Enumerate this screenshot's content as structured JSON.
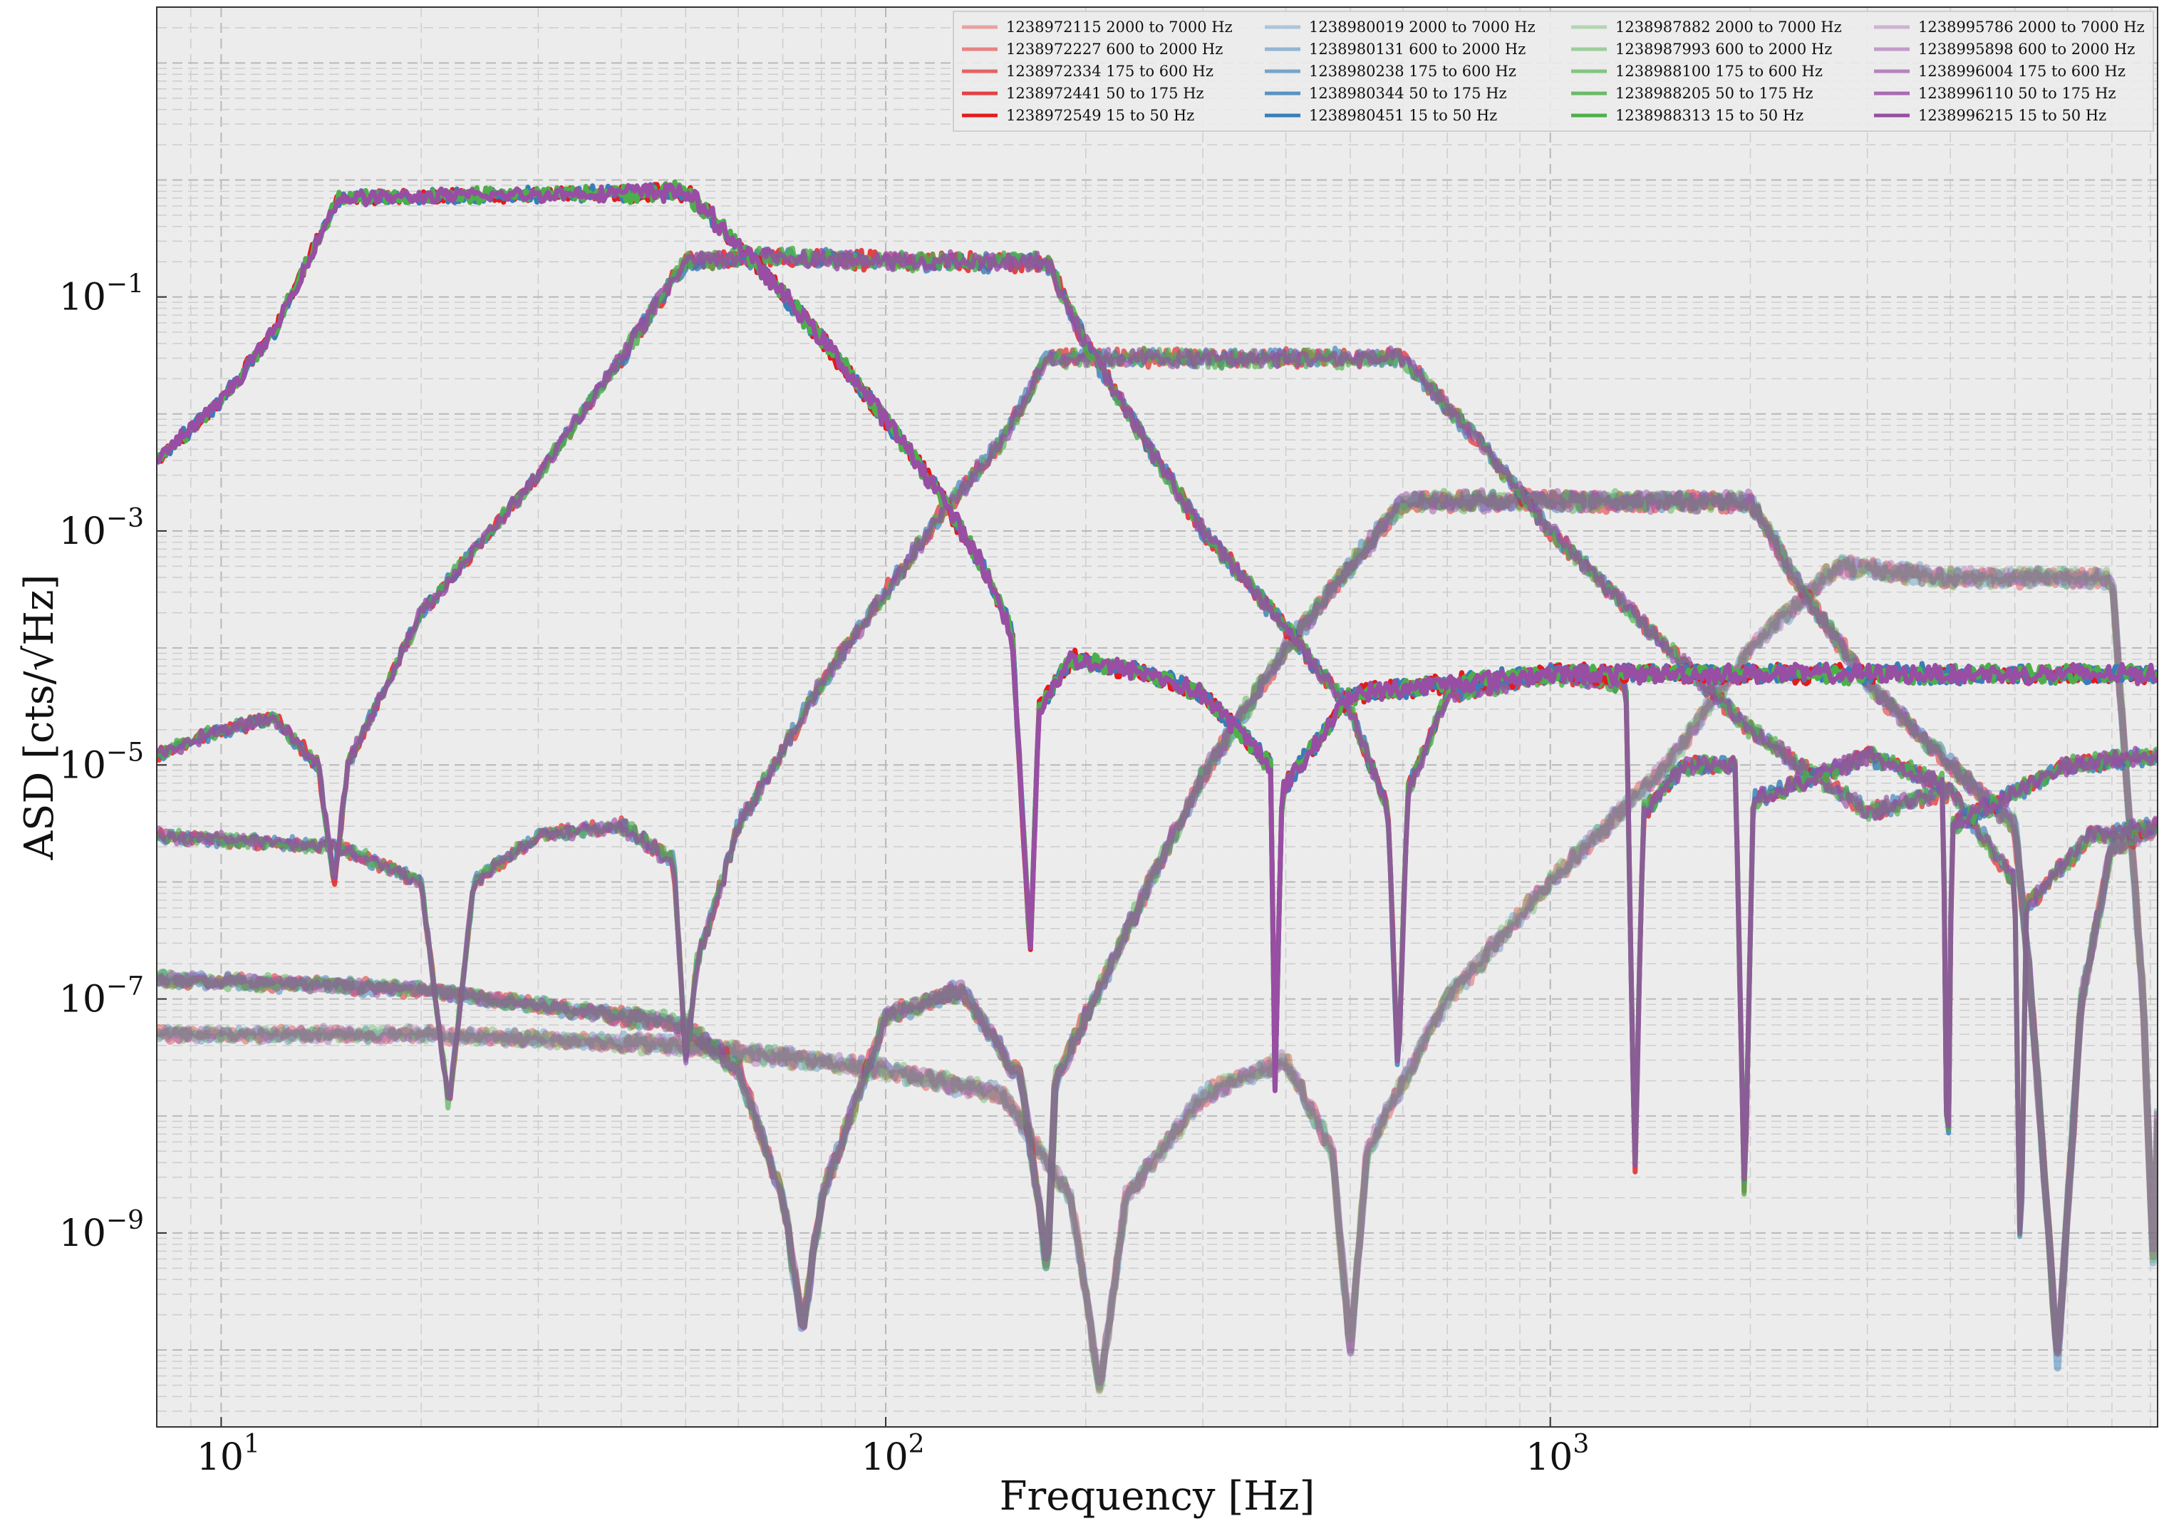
{
  "chart_data": {
    "type": "line",
    "xscale": "log",
    "yscale": "log",
    "xlim": [
      8,
      8200
    ],
    "ylim": [
      2.2e-11,
      30.0
    ],
    "xlabel": "Frequency [Hz]",
    "ylabel": "ASD [cts/√Hz]",
    "grid": true,
    "legend_position": "top-right",
    "x_ticks": [
      {
        "value": 10,
        "label": "10^1"
      },
      {
        "value": 100,
        "label": "10^2"
      },
      {
        "value": 1000,
        "label": "10^3"
      }
    ],
    "y_ticks": [
      {
        "value": 0.1,
        "label": "10^-1"
      },
      {
        "value": 0.001,
        "label": "10^-3"
      },
      {
        "value": 1e-05,
        "label": "10^-5"
      },
      {
        "value": 1e-07,
        "label": "10^-7"
      },
      {
        "value": 1e-09,
        "label": "10^-9"
      }
    ],
    "series": [
      {
        "name": "1238972115 2000 to 7000 Hz",
        "color": "#e41a1c",
        "alpha": 0.35
      },
      {
        "name": "1238972227 600 to 2000 Hz",
        "color": "#e41a1c",
        "alpha": 0.5
      },
      {
        "name": "1238972334 175 to 600 Hz",
        "color": "#e41a1c",
        "alpha": 0.65
      },
      {
        "name": "1238972441 50 to 175 Hz",
        "color": "#e41a1c",
        "alpha": 0.82
      },
      {
        "name": "1238972549 15 to 50 Hz",
        "color": "#e41a1c",
        "alpha": 1.0
      },
      {
        "name": "1238980019 2000 to 7000 Hz",
        "color": "#377eb8",
        "alpha": 0.35
      },
      {
        "name": "1238980131 600 to 2000 Hz",
        "color": "#377eb8",
        "alpha": 0.5
      },
      {
        "name": "1238980238 175 to 600 Hz",
        "color": "#377eb8",
        "alpha": 0.65
      },
      {
        "name": "1238980344 50 to 175 Hz",
        "color": "#377eb8",
        "alpha": 0.82
      },
      {
        "name": "1238980451 15 to 50 Hz",
        "color": "#377eb8",
        "alpha": 1.0
      },
      {
        "name": "1238987882 2000 to 7000 Hz",
        "color": "#4daf4a",
        "alpha": 0.35
      },
      {
        "name": "1238987993 600 to 2000 Hz",
        "color": "#4daf4a",
        "alpha": 0.5
      },
      {
        "name": "1238988100 175 to 600 Hz",
        "color": "#4daf4a",
        "alpha": 0.65
      },
      {
        "name": "1238988205 50 to 175 Hz",
        "color": "#4daf4a",
        "alpha": 0.82
      },
      {
        "name": "1238988313 15 to 50 Hz",
        "color": "#4daf4a",
        "alpha": 1.0
      },
      {
        "name": "1238995786 2000 to 7000 Hz",
        "color": "#984ea3",
        "alpha": 0.35
      },
      {
        "name": "1238995898 600 to 2000 Hz",
        "color": "#984ea3",
        "alpha": 0.5
      },
      {
        "name": "1238996004 175 to 600 Hz",
        "color": "#984ea3",
        "alpha": 0.65
      },
      {
        "name": "1238996110 50 to 175 Hz",
        "color": "#984ea3",
        "alpha": 0.82
      },
      {
        "name": "1238996215 15 to 50 Hz",
        "color": "#984ea3",
        "alpha": 1.0
      }
    ],
    "bands": [
      {
        "label": "15 to 50 Hz",
        "lo": 15,
        "hi": 50,
        "plateau": 0.75,
        "points": [
          [
            8,
            0.004
          ],
          [
            10,
            0.013
          ],
          [
            12,
            0.05
          ],
          [
            15,
            0.7
          ],
          [
            20,
            0.72
          ],
          [
            30,
            0.75
          ],
          [
            40,
            0.78
          ],
          [
            50,
            0.8
          ],
          [
            60,
            0.28
          ],
          [
            80,
            0.045
          ],
          [
            100,
            0.009
          ],
          [
            120,
            0.0022
          ],
          [
            140,
            0.0005
          ],
          [
            155,
            0.00013
          ],
          [
            165,
            2.5e-07
          ],
          [
            170,
            3e-05
          ],
          [
            190,
            8e-05
          ],
          [
            250,
            6e-05
          ],
          [
            300,
            4e-05
          ],
          [
            380,
            1e-05
          ],
          [
            385,
            1.6e-08
          ],
          [
            395,
            6e-06
          ],
          [
            500,
            4e-05
          ],
          [
            700,
            5e-05
          ],
          [
            1000,
            6e-05
          ],
          [
            2000,
            6e-05
          ],
          [
            4000,
            6e-05
          ],
          [
            8200,
            6e-05
          ]
        ]
      },
      {
        "label": "50 to 175 Hz",
        "lo": 50,
        "hi": 175,
        "plateau": 0.2,
        "points": [
          [
            8,
            1.2e-05
          ],
          [
            10,
            2e-05
          ],
          [
            12,
            2.5e-05
          ],
          [
            14,
            1e-05
          ],
          [
            14.8,
            1e-06
          ],
          [
            15.5,
            1e-05
          ],
          [
            20,
            0.0002
          ],
          [
            30,
            0.003
          ],
          [
            40,
            0.03
          ],
          [
            50,
            0.2
          ],
          [
            70,
            0.22
          ],
          [
            100,
            0.2
          ],
          [
            150,
            0.2
          ],
          [
            175,
            0.2
          ],
          [
            200,
            0.04
          ],
          [
            250,
            0.005
          ],
          [
            300,
            0.001
          ],
          [
            400,
            0.00015
          ],
          [
            500,
            3e-05
          ],
          [
            570,
            4e-06
          ],
          [
            590,
            2.2e-08
          ],
          [
            610,
            6e-06
          ],
          [
            700,
            4e-05
          ],
          [
            1000,
            6e-05
          ],
          [
            1300,
            5e-05
          ],
          [
            1340,
            2.8e-09
          ],
          [
            1380,
            4e-06
          ],
          [
            1600,
            1e-05
          ],
          [
            1900,
            1e-05
          ],
          [
            1960,
            1.6e-09
          ],
          [
            2020,
            5e-06
          ],
          [
            3000,
            1.2e-05
          ],
          [
            3900,
            7e-06
          ],
          [
            3960,
            1.1e-09
          ],
          [
            4020,
            3e-06
          ],
          [
            6000,
            1e-05
          ],
          [
            8200,
            1.2e-05
          ]
        ]
      },
      {
        "label": "175 to 600 Hz",
        "lo": 175,
        "hi": 600,
        "plateau": 0.03,
        "points": [
          [
            8,
            2.5e-06
          ],
          [
            10,
            2.3e-06
          ],
          [
            15,
            2e-06
          ],
          [
            20,
            1e-06
          ],
          [
            22,
            1.2e-08
          ],
          [
            24,
            1e-06
          ],
          [
            30,
            2.5e-06
          ],
          [
            40,
            3e-06
          ],
          [
            48,
            1.5e-06
          ],
          [
            50,
            3e-08
          ],
          [
            52,
            2e-07
          ],
          [
            60,
            3e-06
          ],
          [
            80,
            5e-05
          ],
          [
            100,
            0.0003
          ],
          [
            120,
            0.0013
          ],
          [
            150,
            0.006
          ],
          [
            175,
            0.03
          ],
          [
            250,
            0.03
          ],
          [
            400,
            0.03
          ],
          [
            600,
            0.03
          ],
          [
            800,
            0.005
          ],
          [
            1000,
            0.001
          ],
          [
            1500,
            0.0001
          ],
          [
            2000,
            2e-05
          ],
          [
            3000,
            4e-06
          ],
          [
            4000,
            6e-06
          ],
          [
            5000,
            1e-06
          ],
          [
            5100,
            3.2e-10
          ],
          [
            5200,
            6e-07
          ],
          [
            6500,
            2.5e-06
          ],
          [
            8200,
            3e-06
          ]
        ]
      },
      {
        "label": "600 to 2000 Hz",
        "lo": 600,
        "hi": 2000,
        "plateau": 0.0018,
        "points": [
          [
            8,
            1.5e-07
          ],
          [
            20,
            1.2e-07
          ],
          [
            50,
            6e-08
          ],
          [
            60,
            2.5e-08
          ],
          [
            70,
            2e-09
          ],
          [
            75,
            1.5e-10
          ],
          [
            80,
            2e-09
          ],
          [
            100,
            7e-08
          ],
          [
            130,
            1.2e-07
          ],
          [
            160,
            2e-08
          ],
          [
            175,
            5e-10
          ],
          [
            180,
            2e-08
          ],
          [
            250,
            1e-06
          ],
          [
            300,
            8e-06
          ],
          [
            400,
            0.0001
          ],
          [
            500,
            0.0005
          ],
          [
            600,
            0.0018
          ],
          [
            1000,
            0.0018
          ],
          [
            2000,
            0.0018
          ],
          [
            2400,
            0.0003
          ],
          [
            3000,
            5e-05
          ],
          [
            4000,
            1e-05
          ],
          [
            5000,
            3e-06
          ],
          [
            5300,
            1e-07
          ],
          [
            5800,
            8e-11
          ],
          [
            6300,
            1e-07
          ],
          [
            7000,
            2e-06
          ],
          [
            8200,
            3e-06
          ]
        ]
      },
      {
        "label": "2000 to 7000 Hz",
        "lo": 2000,
        "hi": 7000,
        "plateau": 0.0004,
        "points": [
          [
            8,
            5e-08
          ],
          [
            20,
            5e-08
          ],
          [
            50,
            4e-08
          ],
          [
            100,
            2.5e-08
          ],
          [
            150,
            1.5e-08
          ],
          [
            190,
            2e-09
          ],
          [
            210,
            4.5e-11
          ],
          [
            230,
            2e-09
          ],
          [
            300,
            1.5e-08
          ],
          [
            400,
            3e-08
          ],
          [
            470,
            5e-09
          ],
          [
            500,
            1e-10
          ],
          [
            530,
            5e-09
          ],
          [
            700,
            1e-07
          ],
          [
            1000,
            1e-06
          ],
          [
            1500,
            1e-05
          ],
          [
            2000,
            0.0001
          ],
          [
            2700,
            0.0005
          ],
          [
            4000,
            0.0004
          ],
          [
            7000,
            0.0004
          ],
          [
            7300,
            1.5e-05
          ],
          [
            7800,
            1e-07
          ],
          [
            8100,
            4e-10
          ],
          [
            8200,
            1e-08
          ]
        ]
      }
    ]
  }
}
